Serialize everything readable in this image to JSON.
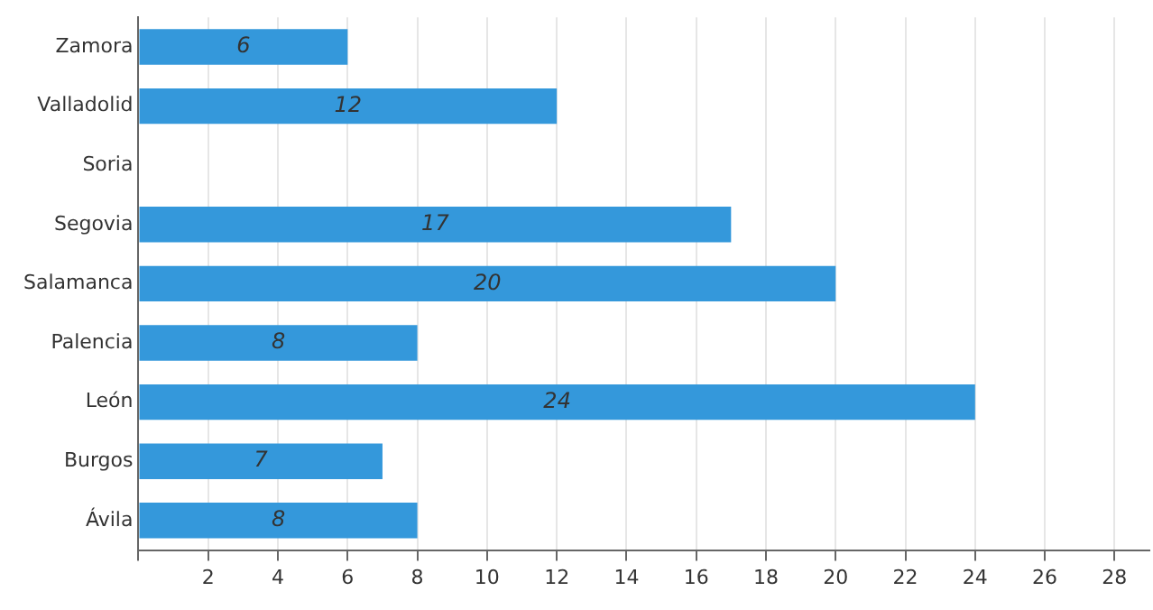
{
  "chart_data": {
    "type": "bar",
    "orientation": "horizontal",
    "categories": [
      "Zamora",
      "Valladolid",
      "Soria",
      "Segovia",
      "Salamanca",
      "Palencia",
      "León",
      "Burgos",
      "Ávila"
    ],
    "values": [
      6,
      12,
      null,
      17,
      20,
      8,
      24,
      7,
      8
    ],
    "color": "#3498db",
    "xlim": [
      0,
      29
    ],
    "xticks": [
      {
        "value": 0,
        "label": null
      },
      2,
      4,
      6,
      8,
      10,
      12,
      14,
      16,
      18,
      20,
      22,
      24,
      26,
      28
    ],
    "grid": "x",
    "data_labels": true
  }
}
